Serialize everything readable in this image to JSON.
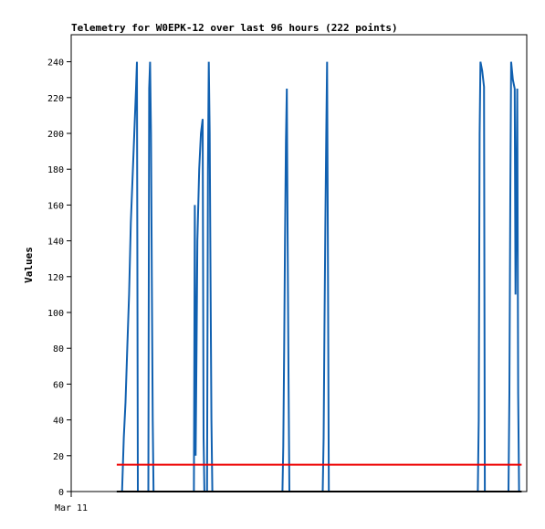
{
  "chart_data": {
    "type": "line",
    "title": "Telemetry for W0EPK-12 over last 96 hours (222 points)",
    "xlabel": "",
    "ylabel": "Values",
    "xlim": [
      0,
      100
    ],
    "ylim": [
      0,
      250
    ],
    "y_ticks": [
      0,
      20,
      40,
      60,
      80,
      100,
      120,
      140,
      160,
      180,
      200,
      220,
      240
    ],
    "x_ticks": [
      {
        "x": 0,
        "label": "Mar 11"
      }
    ],
    "grid": false,
    "series": [
      {
        "color": "#1060b0",
        "points": [
          [
            10.4,
            0
          ],
          [
            11.6,
            0
          ],
          [
            12.0,
            30
          ],
          [
            12.4,
            50
          ],
          [
            12.8,
            80
          ],
          [
            13.2,
            110
          ],
          [
            13.6,
            150
          ],
          [
            14.0,
            175
          ],
          [
            14.4,
            200
          ],
          [
            14.8,
            225
          ],
          [
            15.0,
            240
          ],
          [
            15.2,
            0
          ],
          [
            17.6,
            0
          ],
          [
            17.8,
            225
          ],
          [
            18.0,
            240
          ],
          [
            18.2,
            200
          ],
          [
            18.4,
            120
          ],
          [
            18.6,
            40
          ],
          [
            18.8,
            0
          ],
          [
            28.0,
            0
          ],
          [
            28.2,
            160
          ],
          [
            28.4,
            20
          ],
          [
            28.6,
            80
          ],
          [
            28.8,
            140
          ],
          [
            29.2,
            180
          ],
          [
            29.6,
            200
          ],
          [
            30.0,
            208
          ],
          [
            30.2,
            30
          ],
          [
            30.4,
            0
          ],
          [
            31.0,
            0
          ],
          [
            31.2,
            180
          ],
          [
            31.4,
            240
          ],
          [
            31.6,
            200
          ],
          [
            31.8,
            120
          ],
          [
            32.0,
            40
          ],
          [
            32.2,
            0
          ],
          [
            48.2,
            0
          ],
          [
            48.4,
            25
          ],
          [
            48.6,
            80
          ],
          [
            48.8,
            140
          ],
          [
            49.0,
            195
          ],
          [
            49.2,
            225
          ],
          [
            49.4,
            140
          ],
          [
            49.6,
            60
          ],
          [
            49.8,
            0
          ],
          [
            57.4,
            0
          ],
          [
            57.6,
            30
          ],
          [
            57.8,
            90
          ],
          [
            58.0,
            150
          ],
          [
            58.2,
            200
          ],
          [
            58.4,
            240
          ],
          [
            58.6,
            120
          ],
          [
            58.8,
            0
          ],
          [
            92.8,
            0
          ],
          [
            93.0,
            40
          ],
          [
            93.2,
            200
          ],
          [
            93.4,
            240
          ],
          [
            93.8,
            235
          ],
          [
            94.2,
            226
          ],
          [
            94.4,
            0
          ],
          [
            99.8,
            0
          ],
          [
            100.0,
            55
          ],
          [
            100.2,
            165
          ],
          [
            100.4,
            240
          ],
          [
            100.8,
            230
          ],
          [
            101.2,
            225
          ],
          [
            101.4,
            110
          ],
          [
            101.6,
            168
          ],
          [
            101.8,
            225
          ],
          [
            102.0,
            55
          ],
          [
            102.2,
            0
          ]
        ]
      },
      {
        "color": "#ee0000",
        "points": [
          [
            10.4,
            15
          ],
          [
            102.8,
            15
          ]
        ]
      },
      {
        "color": "#000000",
        "points": [
          [
            10.4,
            0
          ],
          [
            102.8,
            0
          ]
        ]
      }
    ]
  }
}
